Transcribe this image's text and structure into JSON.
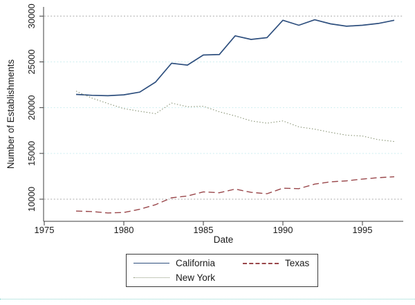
{
  "chart_data": {
    "type": "line",
    "title": "",
    "xlabel": "Date",
    "ylabel": "Number of Establishments",
    "x_ticks": [
      1975,
      1980,
      1985,
      1990,
      1995
    ],
    "y_ticks": [
      10000,
      15000,
      20000,
      25000,
      30000
    ],
    "xlim": [
      1974.9,
      1997.6
    ],
    "ylim": [
      7580,
      31000
    ],
    "grid": "on",
    "gridline_colors": {
      "10000": "#a8a8a8",
      "15000": "#cdeef0",
      "20000": "#cdeef0",
      "25000": "#cdeef0",
      "30000": "#a8a8a8"
    },
    "x": [
      1977,
      1978,
      1979,
      1980,
      1981,
      1982,
      1983,
      1984,
      1985,
      1986,
      1987,
      1988,
      1989,
      1990,
      1991,
      1992,
      1993,
      1994,
      1995,
      1996,
      1997
    ],
    "series": [
      {
        "name": "California",
        "color": "#2e4f7e",
        "style": "solid",
        "values": [
          21450,
          21350,
          21300,
          21400,
          21700,
          22800,
          24850,
          24650,
          25750,
          25800,
          27850,
          27450,
          27650,
          29550,
          29000,
          29600,
          29150,
          28900,
          29000,
          29200,
          29550
        ]
      },
      {
        "name": "New York",
        "color": "#8a9577",
        "style": "dotted",
        "values": [
          21800,
          21050,
          20450,
          19900,
          19600,
          19350,
          20500,
          20100,
          20150,
          19550,
          19100,
          18550,
          18300,
          18550,
          17900,
          17650,
          17300,
          17000,
          16900,
          16500,
          16300
        ]
      },
      {
        "name": "Texas",
        "color": "#99464a",
        "style": "dashed",
        "values": [
          8700,
          8650,
          8500,
          8550,
          8900,
          9400,
          10150,
          10350,
          10800,
          10700,
          11100,
          10750,
          10600,
          11200,
          11150,
          11650,
          11900,
          12000,
          12200,
          12350,
          12450
        ]
      }
    ],
    "legend": {
      "position": "bottom-center",
      "border": true,
      "rows": [
        [
          "California",
          "Texas"
        ],
        [
          "New York"
        ]
      ]
    }
  },
  "page": {
    "background": "#ffffff",
    "separator_color": "#82d3cb"
  }
}
